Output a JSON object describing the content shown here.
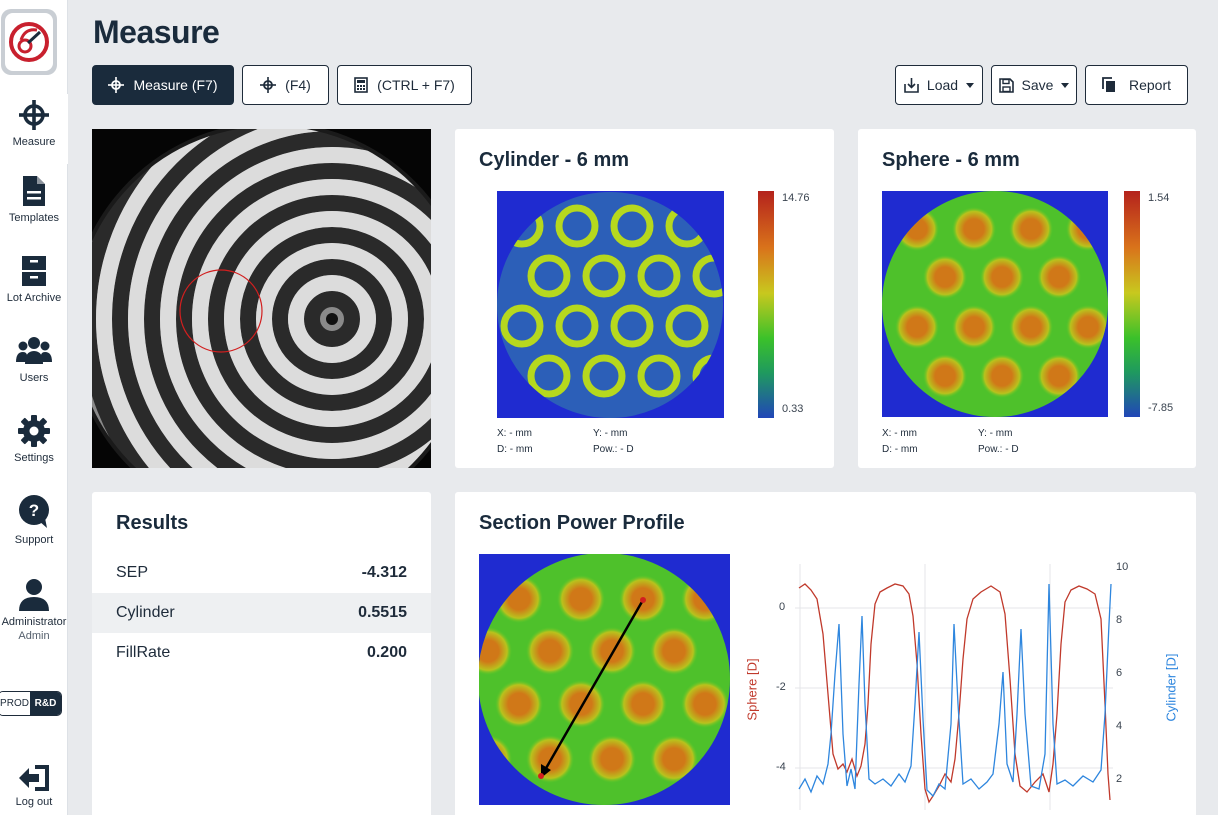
{
  "sidebar": {
    "items": [
      {
        "label": "Measure",
        "icon": "crosshair-icon"
      },
      {
        "label": "Templates",
        "icon": "document-icon"
      },
      {
        "label": "Lot Archive",
        "icon": "archive-icon"
      },
      {
        "label": "Users",
        "icon": "users-icon"
      },
      {
        "label": "Settings",
        "icon": "gear-icon"
      },
      {
        "label": "Support",
        "icon": "support-icon"
      }
    ],
    "user": {
      "name": "Administrator",
      "role": "Admin"
    },
    "env": {
      "prod": "PROD",
      "rd": "R&D"
    },
    "logout": "Log out"
  },
  "header": {
    "title": "Measure",
    "buttons": {
      "measure": "Measure (F7)",
      "f4": "(F4)",
      "calc": "(CTRL + F7)",
      "load": "Load",
      "save": "Save",
      "report": "Report"
    }
  },
  "cylinder_map": {
    "title": "Cylinder - 6 mm",
    "scale_max": "14.76",
    "scale_min": "0.33",
    "x": "X: - mm",
    "y": "Y: - mm",
    "d": "D: - mm",
    "pow": "Pow.: - D"
  },
  "sphere_map": {
    "title": "Sphere - 6 mm",
    "scale_max": "1.54",
    "scale_min": "-7.85",
    "x": "X: - mm",
    "y": "Y: - mm",
    "d": "D: - mm",
    "pow": "Pow.: - D"
  },
  "results": {
    "title": "Results",
    "rows": [
      {
        "label": "SEP",
        "value": "-4.312"
      },
      {
        "label": "Cylinder",
        "value": "0.5515"
      },
      {
        "label": "FillRate",
        "value": "0.200"
      }
    ]
  },
  "profile": {
    "title": "Section Power Profile",
    "left_axis_label": "Sphere [D]",
    "right_axis_label": "Cylinder [D]",
    "left_ticks": [
      "0",
      "-2",
      "-4"
    ],
    "right_ticks": [
      "10",
      "8",
      "6",
      "4",
      "2"
    ]
  },
  "colors": {
    "brand": "#1a2b3c",
    "sphere_series": "#c0392b",
    "cylinder_series": "#2e86de"
  }
}
